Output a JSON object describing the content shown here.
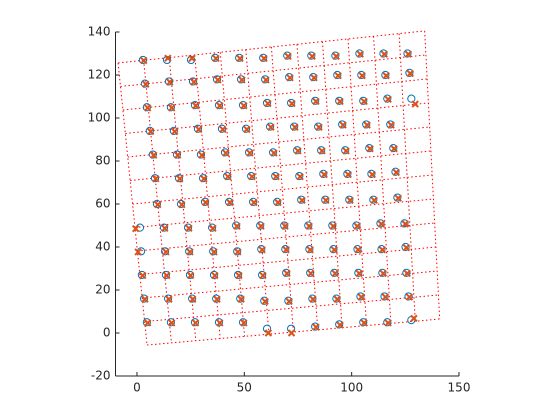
{
  "chart_data": {
    "type": "scatter",
    "xlim": [
      -10,
      150
    ],
    "ylim": [
      -20,
      140
    ],
    "xticks": [
      0,
      50,
      100,
      150
    ],
    "yticks": [
      -20,
      0,
      20,
      40,
      60,
      80,
      100,
      120,
      140
    ],
    "grid_color": "#ff0000",
    "grid_corners": {
      "x": [
        -8.8,
        134,
        141,
        4.7
      ],
      "y": [
        125.6,
        140.5,
        6.5,
        -5.6
      ]
    },
    "grid_divisions": 12,
    "series": [
      {
        "marker": "o",
        "color": "#0072bd",
        "x": [
          4.6,
          15.8,
          27,
          38.2,
          49.4,
          60.6,
          71.8,
          83,
          94.2,
          105.4,
          116.6,
          127.8,
          3.3,
          14.5,
          25.7,
          36.9,
          48.1,
          59.3,
          70.5,
          81.7,
          92.9,
          104.1,
          115.3,
          126.5,
          2.3,
          13.5,
          24.7,
          35.9,
          47.1,
          58.3,
          69.5,
          80.7,
          91.9,
          103.1,
          114.3,
          125.5,
          1.9,
          13.1,
          24.3,
          35.5,
          46.7,
          57.9,
          69.1,
          80.3,
          91.5,
          102.7,
          113.9,
          125.1,
          1.4,
          12.6,
          23.8,
          35,
          46.2,
          57.4,
          68.6,
          79.8,
          91,
          102.2,
          113.4,
          124.6,
          9.3,
          20.5,
          31.7,
          42.9,
          54.1,
          65.3,
          76.5,
          87.7,
          98.9,
          110.1,
          121.3,
          8.4,
          19.6,
          30.8,
          42,
          53.2,
          64.4,
          75.6,
          86.8,
          98,
          109.2,
          120.4,
          7.4,
          18.6,
          29.8,
          41,
          52.2,
          63.4,
          74.6,
          85.8,
          97,
          108.2,
          119.4,
          6,
          17.2,
          28.4,
          39.6,
          50.8,
          62,
          73.2,
          84.4,
          95.6,
          106.8,
          118,
          4.6,
          15.8,
          27,
          38.2,
          49.4,
          60.6,
          71.8,
          83,
          94.2,
          105.4,
          116.6,
          127.8,
          3.7,
          14.9,
          26.1,
          37.3,
          48.5,
          59.7,
          70.9,
          82.1,
          93.3,
          104.5,
          115.7,
          126.9,
          2.8,
          14,
          25.2,
          36.4,
          47.6,
          58.8,
          70,
          81.2,
          92.4,
          103.6,
          114.8,
          126
        ],
        "y": [
          5,
          5,
          5,
          5,
          5,
          2,
          2,
          3,
          4,
          5,
          5,
          6,
          16,
          16,
          16,
          16,
          16,
          15,
          15,
          16,
          16,
          17,
          17,
          17,
          27,
          27,
          27,
          27,
          27,
          27,
          28,
          28,
          28,
          28,
          28,
          28,
          38,
          38,
          38,
          38,
          38,
          39,
          39,
          39,
          39,
          39,
          39,
          40,
          49,
          49,
          49,
          49,
          50,
          50,
          50,
          50,
          50,
          50,
          51,
          51,
          60,
          60,
          61,
          61,
          61,
          61,
          62,
          62,
          62,
          62,
          63,
          72,
          72,
          72,
          73,
          73,
          73,
          73,
          74,
          74,
          74,
          75,
          83,
          83,
          83,
          84,
          84,
          84,
          85,
          85,
          85,
          86,
          86,
          94,
          94,
          95,
          95,
          95,
          96,
          96,
          96,
          97,
          97,
          97,
          105,
          105,
          106,
          106,
          106,
          107,
          107,
          108,
          108,
          108,
          109,
          109,
          116,
          117,
          117,
          118,
          118,
          118,
          119,
          119,
          120,
          120,
          120,
          121,
          127,
          127,
          127,
          128,
          128,
          128,
          129,
          129,
          129,
          130,
          130,
          130
        ]
      },
      {
        "marker": "x",
        "color": "#d95319",
        "x": [
          5,
          16.2,
          27.3,
          38.6,
          49.8,
          61.2,
          72,
          83.4,
          94.6,
          105.8,
          117,
          129,
          3.7,
          14.9,
          26,
          37.3,
          48.5,
          59.7,
          70.9,
          82,
          93.3,
          104.5,
          115.7,
          126.9,
          2.7,
          13.9,
          25,
          36.3,
          47.5,
          58.7,
          69.9,
          81,
          92.3,
          103.5,
          114.7,
          125.9,
          0.5,
          13.5,
          24.7,
          35.9,
          47,
          58.3,
          69.5,
          80.7,
          91.9,
          103,
          114.3,
          125.5,
          -0.6,
          13,
          24.2,
          35.4,
          46.6,
          57.8,
          69,
          80.2,
          91.4,
          102.6,
          113.8,
          125,
          9.7,
          20.9,
          32,
          43.3,
          54.5,
          65.7,
          76.9,
          88,
          99.3,
          110.5,
          121.7,
          8.8,
          20,
          31.2,
          42.4,
          53.6,
          64.8,
          76,
          87.2,
          98.4,
          109.6,
          120.8,
          7.8,
          19,
          30.2,
          41.4,
          52.6,
          63.8,
          75,
          86.2,
          97.4,
          108.6,
          119.8,
          6.4,
          17.6,
          28.8,
          40,
          51.2,
          62.4,
          73.6,
          84.8,
          96,
          107.2,
          118.4,
          5,
          16.2,
          27.4,
          38.6,
          49.8,
          61,
          72.2,
          83.4,
          94.6,
          105.8,
          117,
          129.6,
          4.1,
          15.3,
          26.5,
          37.7,
          48.9,
          60.1,
          71.3,
          82.5,
          93.7,
          104.9,
          116.1,
          127.3,
          3.2,
          14.4,
          25.6,
          36.8,
          48,
          59.2,
          70.4,
          81.6,
          92.8,
          104,
          115.2,
          126.4
        ],
        "y": [
          4.7,
          4.7,
          4.7,
          4.7,
          4.7,
          0,
          0,
          2.7,
          3.7,
          4.7,
          4.7,
          6.8,
          15.7,
          15.7,
          15.7,
          15.7,
          15.7,
          14.7,
          14.7,
          15.7,
          15.7,
          16.7,
          16.7,
          16.7,
          26.7,
          26.7,
          26.7,
          26.7,
          26.7,
          26.7,
          27.7,
          27.7,
          27.7,
          27.7,
          27.7,
          27.7,
          37.7,
          37.7,
          37.7,
          37.7,
          37.7,
          38.7,
          38.7,
          38.7,
          38.7,
          38.7,
          38.7,
          39.7,
          48.5,
          48.7,
          48.7,
          48.7,
          49.7,
          49.7,
          49.7,
          49.7,
          49.7,
          49.7,
          50.7,
          50.7,
          59.7,
          59.7,
          60.7,
          60.7,
          60.7,
          60.7,
          61.7,
          61.7,
          61.7,
          61.7,
          62.7,
          71.7,
          71.7,
          71.7,
          72.7,
          72.7,
          72.7,
          72.7,
          73.7,
          73.7,
          73.7,
          74.7,
          82.7,
          82.7,
          82.7,
          83.7,
          83.7,
          83.7,
          84.7,
          84.7,
          84.7,
          85.7,
          85.7,
          93.7,
          93.7,
          94.7,
          94.7,
          94.7,
          95.7,
          95.7,
          95.7,
          96.7,
          96.7,
          96.7,
          104.7,
          104.7,
          105.7,
          105.7,
          105.7,
          106.7,
          106.7,
          107.7,
          107.7,
          107.7,
          108.7,
          106.5,
          115.7,
          116.7,
          116.7,
          117.7,
          117.7,
          117.7,
          118.7,
          118.7,
          119.7,
          119.7,
          119.7,
          120.7,
          126.7,
          127.8,
          127.7,
          127.7,
          127.7,
          127.7,
          128.7,
          128.7,
          128.7,
          129.7,
          129.7,
          129.7
        ]
      }
    ]
  }
}
